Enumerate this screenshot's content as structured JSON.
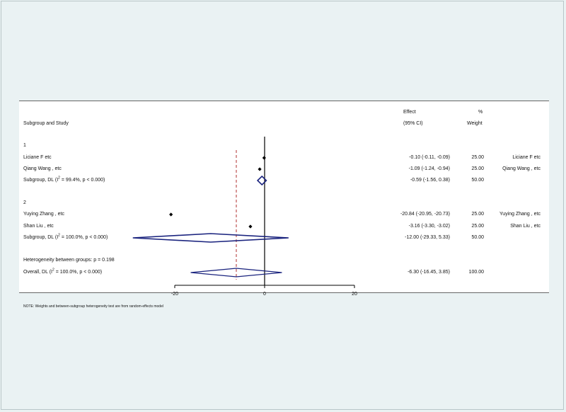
{
  "chart_data": {
    "type": "forest",
    "header": {
      "study_col": "Subgroup and Study",
      "effect_line1": "Effect",
      "effect_line2": "(95% CI)",
      "weight_line1": "%",
      "weight_line2": "Weight"
    },
    "rows": [
      {
        "kind": "group",
        "label": "1"
      },
      {
        "kind": "study",
        "label": "Liciane F etc",
        "effect": -0.1,
        "lo": -0.11,
        "hi": -0.09,
        "ci_text": "-0.10 (-0.11, -0.09)",
        "weight": "25.00",
        "right_label": "Liciane F etc"
      },
      {
        "kind": "study",
        "label": "Qiang Wang , etc",
        "effect": -1.09,
        "lo": -1.24,
        "hi": -0.94,
        "ci_text": "-1.09 (-1.24, -0.94)",
        "weight": "25.00",
        "right_label": "Qiang Wang , etc"
      },
      {
        "kind": "subgroup",
        "label": "Subgroup, DL (I",
        "i2_text": " = 99.4%, p < 0.000)",
        "effect": -0.59,
        "lo": -1.56,
        "hi": 0.38,
        "ci_text": "-0.59 (-1.56, 0.38)",
        "weight": "50.00"
      },
      {
        "kind": "group",
        "label": "2"
      },
      {
        "kind": "study",
        "label": "Yuying Zhang , etc",
        "effect": -20.84,
        "lo": -20.95,
        "hi": -20.73,
        "ci_text": "-20.84 (-20.95, -20.73)",
        "weight": "25.00",
        "right_label": "Yuying Zhang , etc"
      },
      {
        "kind": "study",
        "label": "Shan Liu , etc",
        "effect": -3.16,
        "lo": -3.3,
        "hi": -3.02,
        "ci_text": "-3.16 (-3.30, -3.02)",
        "weight": "25.00",
        "right_label": "Shan Liu , etc"
      },
      {
        "kind": "subgroup",
        "label": "Subgroup, DL (I",
        "i2_text": " = 100.0%, p < 0.000)",
        "effect": -12.0,
        "lo": -29.33,
        "hi": 5.33,
        "ci_text": "-12.00 (-29.33, 5.33)",
        "weight": "50.00"
      },
      {
        "kind": "note",
        "label": "Heterogeneity between groups: p = 0.198"
      },
      {
        "kind": "overall",
        "label": "Overall, DL (I",
        "i2_text": " = 100.0%, p < 0.000)",
        "effect": -6.3,
        "lo": -16.45,
        "hi": 3.85,
        "ci_text": "-6.30 (-16.45, 3.85)",
        "weight": "100.00"
      }
    ],
    "i2_sup": "2",
    "x_ticks": [
      -20,
      0,
      20
    ],
    "x_tick_labels": [
      "-20",
      "0",
      "20"
    ],
    "null_line": 0,
    "overall_effect_line": -6.3,
    "footnote": "NOTE: Weights and between-subgroup heterogeneity test are from random-effects model",
    "colors": {
      "diamond": "#1a237e",
      "marker": "#000000",
      "dashed_line": "#b03030",
      "panel": "#ffffff",
      "background": "#eaf2f3"
    }
  }
}
